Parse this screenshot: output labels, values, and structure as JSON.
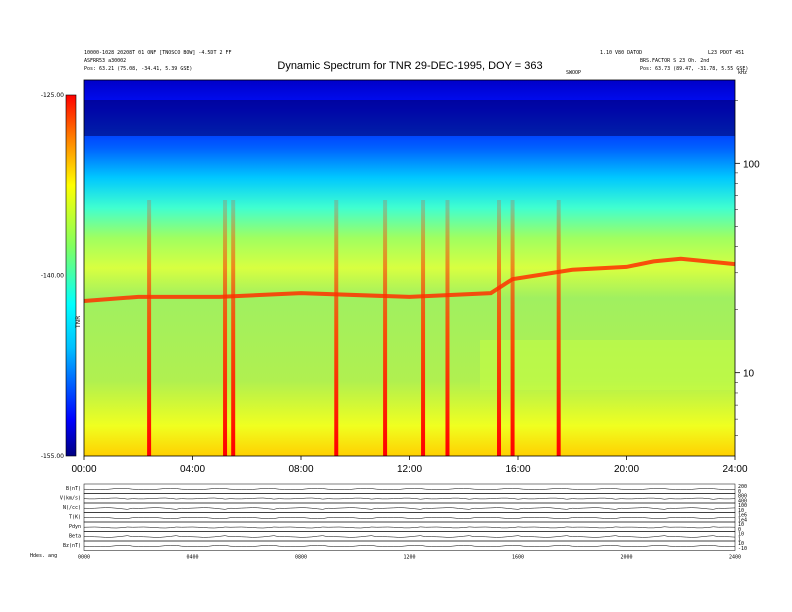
{
  "header": {
    "left_line1": "10000-1028 20208T 01 ONF [TNOSCO BOW] -4.5DT 2 FF",
    "left_line2": "ASFRR53 a30002",
    "left_pos": "Pos: 63.21 (75.08, -34.41, 5.39 GSE)",
    "right_line1": "1.10 V80 DATOD",
    "right_line1b": "L23 PDOT 451",
    "right_line2": "BRS.FACTOR S 23 Oh. 2nd",
    "right_pos": "Pos: 63.73 (89.47, -31.78, 5.55 GSE)",
    "marker": "SWOOP",
    "khz_unit": "kHz",
    "colorbar_axis_label": "TNR",
    "bottom_left": "Hdes. ang"
  },
  "chart_data": {
    "type": "heatmap",
    "title": "Dynamic Spectrum for TNR 29-DEC-1995, DOY = 363",
    "x_ticks": [
      "00:00",
      "04:00",
      "08:00",
      "12:00",
      "16:00",
      "20:00",
      "24:00"
    ],
    "x_range_hours": [
      0,
      24
    ],
    "y_right_ticks": [
      "100",
      "10"
    ],
    "y_right_scale": "log",
    "y_right_range_khz": [
      4,
      250
    ],
    "colorbar_ticks": [
      "-125.00",
      "-140.00",
      "-155.00"
    ],
    "colorbar_range": [
      -155,
      -125
    ],
    "colorbar_colors": [
      "#000080",
      "#0000ff",
      "#00a0ff",
      "#00ffff",
      "#7fff7f",
      "#ffff00",
      "#ff8000",
      "#ff0000"
    ],
    "spectrum_regions": [
      {
        "label": "quiet background",
        "color": "#90ee50"
      },
      {
        "label": "plasma line",
        "color": "#ff4000"
      },
      {
        "label": "high-frequency band",
        "color": "#0030ff"
      }
    ],
    "plasma_line_khz": [
      {
        "h": 0,
        "f": 22
      },
      {
        "h": 2,
        "f": 23
      },
      {
        "h": 5,
        "f": 23
      },
      {
        "h": 8,
        "f": 24
      },
      {
        "h": 12,
        "f": 23
      },
      {
        "h": 15,
        "f": 24
      },
      {
        "h": 15.8,
        "f": 28
      },
      {
        "h": 18,
        "f": 31
      },
      {
        "h": 20,
        "f": 32
      },
      {
        "h": 21,
        "f": 34
      },
      {
        "h": 22,
        "f": 35
      },
      {
        "h": 24,
        "f": 33
      }
    ],
    "bursts_hours": [
      2.4,
      5.2,
      5.5,
      9.3,
      11.1,
      12.5,
      13.4,
      15.3,
      15.8,
      17.5
    ],
    "panels": [
      {
        "label": "B(nT)",
        "ticks": [
          "200",
          "0"
        ]
      },
      {
        "label": "V(km/s)",
        "ticks": [
          "800",
          "400"
        ]
      },
      {
        "label": "N(/cc)",
        "ticks": [
          "100",
          "10"
        ]
      },
      {
        "label": "T(K)",
        "ticks": [
          "1e6",
          "1e4"
        ]
      },
      {
        "label": "Pdyn",
        "ticks": [
          "10",
          "0"
        ]
      },
      {
        "label": "Beta",
        "ticks": [
          "10",
          "1"
        ]
      },
      {
        "label": "Bz(nT)",
        "ticks": [
          "10",
          "-10"
        ]
      }
    ],
    "panel_x_ticks": [
      "0000",
      "0400",
      "0800",
      "1200",
      "1600",
      "2000",
      "2400"
    ]
  }
}
